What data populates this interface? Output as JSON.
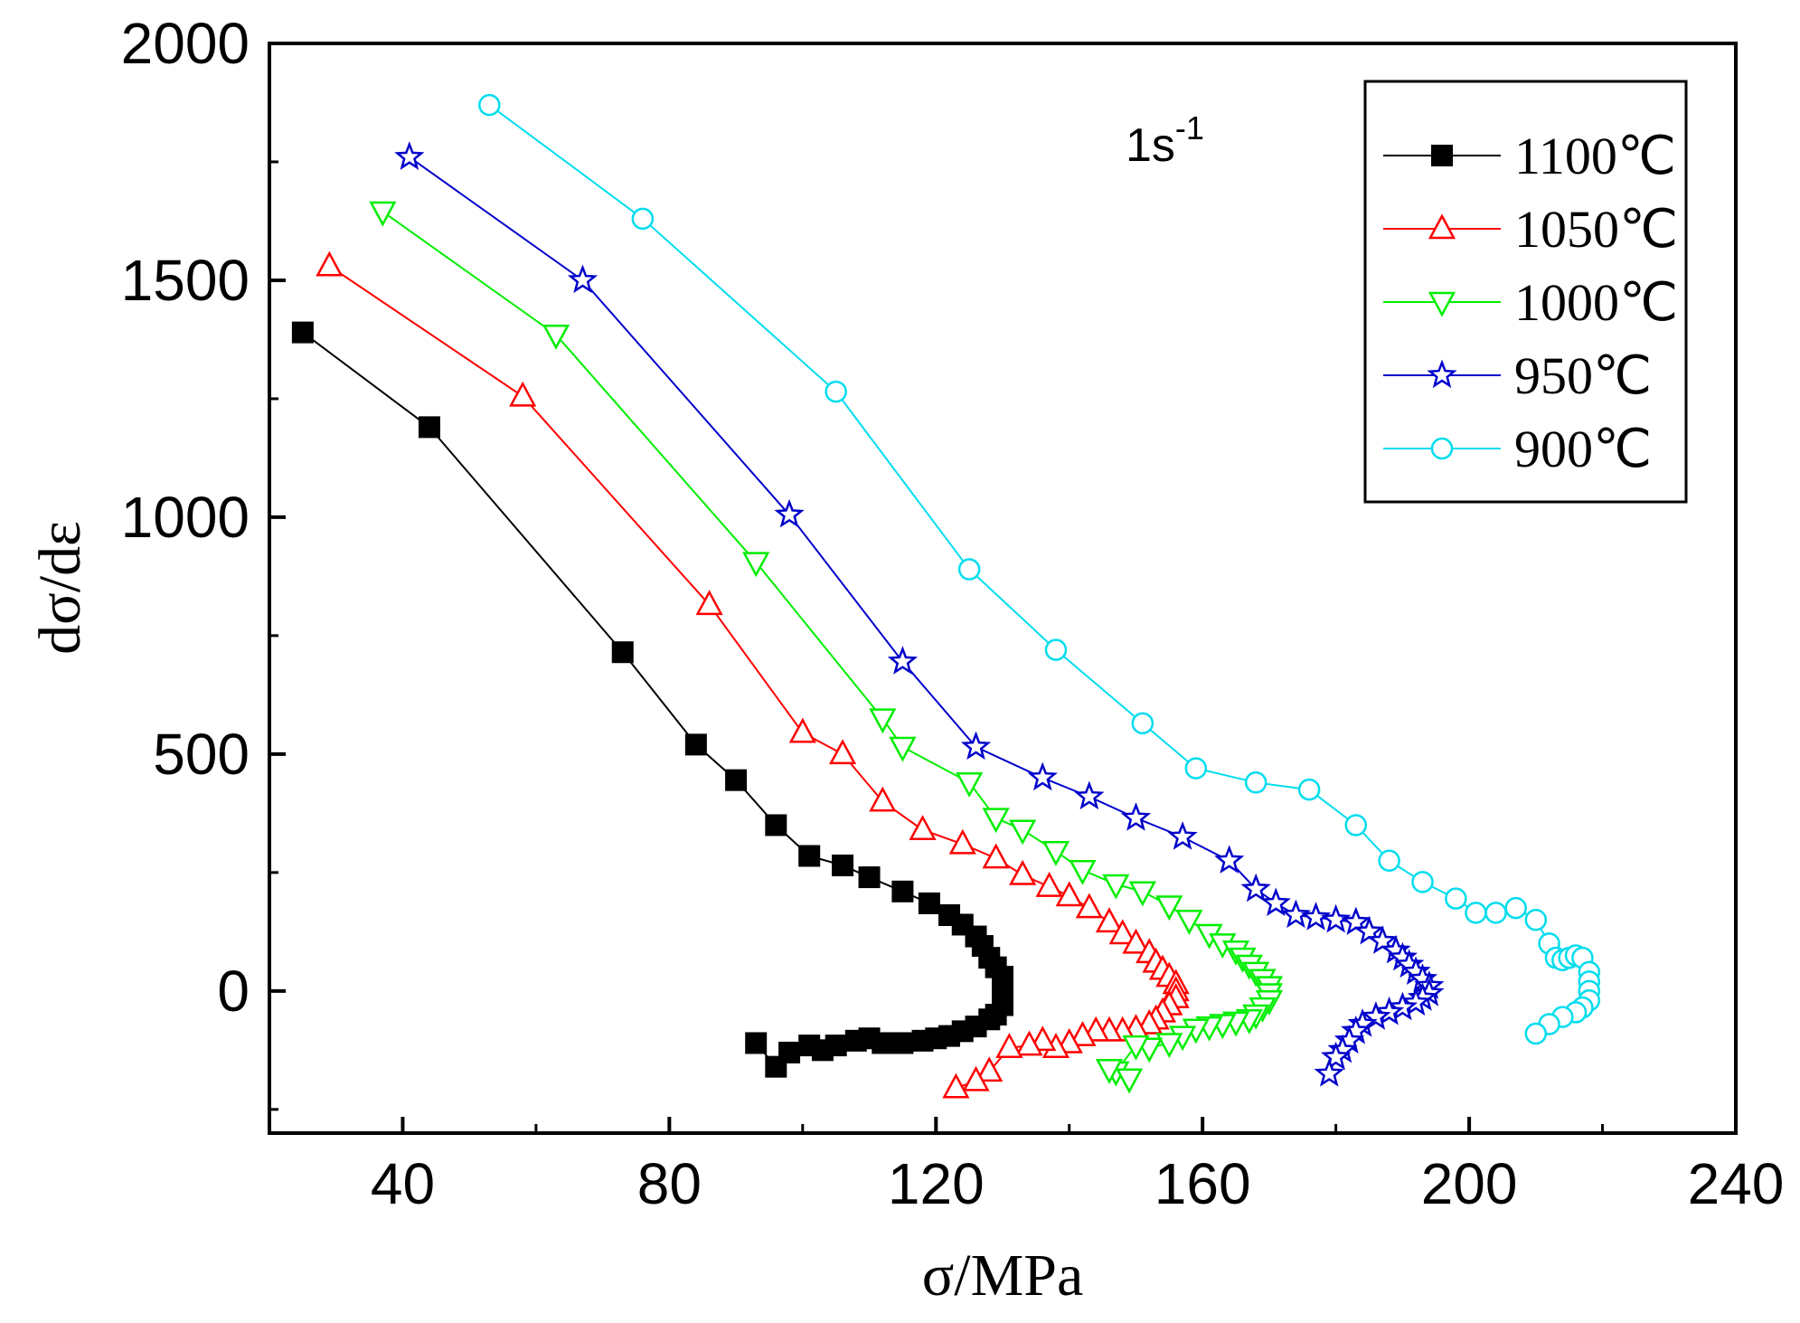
{
  "chart_data": {
    "type": "scatter",
    "annotation": {
      "base": "1s",
      "sup": "-1"
    },
    "xlabel": "σ/MPa",
    "ylabel": "dσ/dε",
    "xlim": [
      20,
      240
    ],
    "ylim": [
      -300,
      2000
    ],
    "x_ticks": [
      40,
      80,
      120,
      160,
      200,
      240
    ],
    "y_ticks": [
      0,
      500,
      1000,
      1500,
      2000
    ],
    "legend_position": "top-right",
    "series": [
      {
        "name": "1100℃",
        "color": "#000000",
        "marker": "square-filled",
        "points": [
          [
            25,
            1390
          ],
          [
            44,
            1190
          ],
          [
            73,
            715
          ],
          [
            84,
            520
          ],
          [
            90,
            445
          ],
          [
            96,
            350
          ],
          [
            101,
            285
          ],
          [
            106,
            265
          ],
          [
            110,
            240
          ],
          [
            115,
            210
          ],
          [
            119,
            185
          ],
          [
            122,
            160
          ],
          [
            124,
            140
          ],
          [
            126,
            115
          ],
          [
            127,
            95
          ],
          [
            128,
            70
          ],
          [
            129,
            50
          ],
          [
            130,
            30
          ],
          [
            130,
            10
          ],
          [
            130,
            -10
          ],
          [
            130,
            -30
          ],
          [
            129,
            -50
          ],
          [
            128,
            -60
          ],
          [
            126,
            -75
          ],
          [
            124,
            -85
          ],
          [
            122,
            -95
          ],
          [
            120,
            -100
          ],
          [
            118,
            -105
          ],
          [
            115,
            -110
          ],
          [
            112,
            -110
          ],
          [
            110,
            -100
          ],
          [
            108,
            -105
          ],
          [
            105,
            -115
          ],
          [
            103,
            -125
          ],
          [
            101,
            -115
          ],
          [
            98,
            -130
          ],
          [
            96,
            -160
          ],
          [
            93,
            -110
          ]
        ]
      },
      {
        "name": "1050℃",
        "color": "#ff0000",
        "marker": "triangle-up",
        "points": [
          [
            29,
            1530
          ],
          [
            58,
            1255
          ],
          [
            86,
            815
          ],
          [
            100,
            545
          ],
          [
            106,
            500
          ],
          [
            112,
            400
          ],
          [
            118,
            340
          ],
          [
            124,
            310
          ],
          [
            129,
            280
          ],
          [
            133,
            245
          ],
          [
            137,
            220
          ],
          [
            140,
            200
          ],
          [
            143,
            175
          ],
          [
            146,
            145
          ],
          [
            148,
            120
          ],
          [
            150,
            100
          ],
          [
            152,
            80
          ],
          [
            153,
            60
          ],
          [
            154,
            45
          ],
          [
            155,
            30
          ],
          [
            156,
            15
          ],
          [
            156,
            0
          ],
          [
            156,
            -15
          ],
          [
            155,
            -30
          ],
          [
            154,
            -45
          ],
          [
            153,
            -60
          ],
          [
            152,
            -70
          ],
          [
            150,
            -80
          ],
          [
            148,
            -85
          ],
          [
            146,
            -85
          ],
          [
            144,
            -85
          ],
          [
            142,
            -95
          ],
          [
            140,
            -110
          ],
          [
            138,
            -120
          ],
          [
            136,
            -105
          ],
          [
            134,
            -115
          ],
          [
            131,
            -120
          ],
          [
            128,
            -170
          ],
          [
            126,
            -190
          ],
          [
            123,
            -205
          ]
        ]
      },
      {
        "name": "1000℃",
        "color": "#00ee00",
        "marker": "triangle-down",
        "points": [
          [
            37,
            1645
          ],
          [
            63,
            1385
          ],
          [
            93,
            905
          ],
          [
            112,
            575
          ],
          [
            115,
            515
          ],
          [
            125,
            440
          ],
          [
            129,
            365
          ],
          [
            133,
            340
          ],
          [
            138,
            295
          ],
          [
            142,
            255
          ],
          [
            147,
            225
          ],
          [
            151,
            210
          ],
          [
            155,
            180
          ],
          [
            158,
            150
          ],
          [
            161,
            120
          ],
          [
            163,
            100
          ],
          [
            165,
            85
          ],
          [
            166,
            70
          ],
          [
            167,
            55
          ],
          [
            168,
            40
          ],
          [
            169,
            25
          ],
          [
            170,
            10
          ],
          [
            170,
            -5
          ],
          [
            170,
            -20
          ],
          [
            169,
            -35
          ],
          [
            168,
            -50
          ],
          [
            167,
            -60
          ],
          [
            165,
            -65
          ],
          [
            163,
            -70
          ],
          [
            161,
            -75
          ],
          [
            159,
            -80
          ],
          [
            157,
            -95
          ],
          [
            155,
            -110
          ],
          [
            152,
            -120
          ],
          [
            150,
            -115
          ],
          [
            147,
            -170
          ],
          [
            149,
            -185
          ],
          [
            146,
            -165
          ]
        ]
      },
      {
        "name": "950℃",
        "color": "#0000cc",
        "marker": "star",
        "points": [
          [
            41,
            1760
          ],
          [
            67,
            1500
          ],
          [
            98,
            1005
          ],
          [
            115,
            695
          ],
          [
            126,
            515
          ],
          [
            136,
            450
          ],
          [
            143,
            410
          ],
          [
            150,
            365
          ],
          [
            157,
            325
          ],
          [
            164,
            275
          ],
          [
            168,
            215
          ],
          [
            171,
            185
          ],
          [
            174,
            160
          ],
          [
            177,
            155
          ],
          [
            180,
            150
          ],
          [
            183,
            145
          ],
          [
            185,
            125
          ],
          [
            187,
            105
          ],
          [
            189,
            85
          ],
          [
            190,
            70
          ],
          [
            191,
            55
          ],
          [
            192,
            40
          ],
          [
            193,
            25
          ],
          [
            194,
            10
          ],
          [
            194,
            -5
          ],
          [
            193,
            -15
          ],
          [
            192,
            -25
          ],
          [
            190,
            -35
          ],
          [
            188,
            -45
          ],
          [
            186,
            -55
          ],
          [
            184,
            -70
          ],
          [
            183,
            -85
          ],
          [
            182,
            -105
          ],
          [
            181,
            -125
          ],
          [
            180,
            -140
          ],
          [
            179,
            -175
          ]
        ]
      },
      {
        "name": "900℃",
        "color": "#00ddee",
        "marker": "circle",
        "points": [
          [
            53,
            1870
          ],
          [
            76,
            1630
          ],
          [
            105,
            1265
          ],
          [
            125,
            890
          ],
          [
            138,
            720
          ],
          [
            151,
            565
          ],
          [
            159,
            470
          ],
          [
            168,
            440
          ],
          [
            176,
            425
          ],
          [
            183,
            350
          ],
          [
            188,
            275
          ],
          [
            193,
            230
          ],
          [
            198,
            195
          ],
          [
            201,
            165
          ],
          [
            204,
            165
          ],
          [
            207,
            175
          ],
          [
            210,
            150
          ],
          [
            212,
            100
          ],
          [
            213,
            70
          ],
          [
            214,
            65
          ],
          [
            215,
            70
          ],
          [
            216,
            75
          ],
          [
            217,
            70
          ],
          [
            218,
            40
          ],
          [
            218,
            20
          ],
          [
            218,
            0
          ],
          [
            218,
            -20
          ],
          [
            217,
            -35
          ],
          [
            216,
            -45
          ],
          [
            214,
            -55
          ],
          [
            212,
            -70
          ],
          [
            210,
            -90
          ]
        ]
      }
    ]
  }
}
